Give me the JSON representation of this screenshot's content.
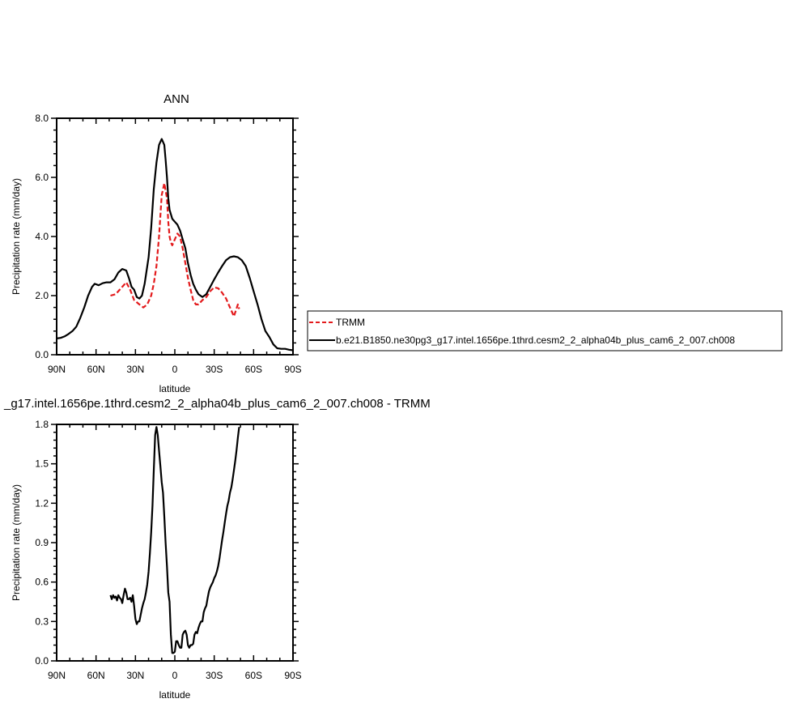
{
  "chart_data": [
    {
      "type": "line",
      "title": "ANN",
      "xlabel": "latitude",
      "ylabel": "Precipitation rate (mm/day)",
      "xticks": [
        "90N",
        "60N",
        "30N",
        "0",
        "30S",
        "60S",
        "90S"
      ],
      "xlim": [
        90,
        -90
      ],
      "ylim": [
        0,
        8
      ],
      "yticks": [
        "0.0",
        "2.0",
        "4.0",
        "6.0",
        "8.0"
      ],
      "legend_position": "right",
      "series": [
        {
          "name": "TRMM",
          "color": "#e31a1c",
          "style": "dashed",
          "x": [
            49,
            45,
            40,
            37,
            34,
            31,
            27,
            24,
            21,
            18,
            16,
            14,
            12,
            10,
            8,
            6,
            5,
            4,
            3,
            2,
            0,
            -2,
            -4,
            -6,
            -8,
            -10,
            -12,
            -14,
            -16,
            -18,
            -21,
            -24,
            -27,
            -30,
            -33,
            -36,
            -39,
            -42,
            -45,
            -48,
            -49
          ],
          "y": [
            2.0,
            2.05,
            2.3,
            2.45,
            2.2,
            1.85,
            1.7,
            1.6,
            1.7,
            2.0,
            2.4,
            3.0,
            4.0,
            5.4,
            5.8,
            5.3,
            4.5,
            4.0,
            3.8,
            3.7,
            3.9,
            4.1,
            4.0,
            3.6,
            3.1,
            2.6,
            2.2,
            1.85,
            1.7,
            1.7,
            1.85,
            1.95,
            2.15,
            2.28,
            2.25,
            2.1,
            1.9,
            1.6,
            1.3,
            1.7,
            1.55
          ]
        },
        {
          "name": "b.e21.B1850.ne30pg3_g17.intel.1656pe.1thrd.cesm2_2_alpha04b_plus_cam6_2_007.ch008",
          "color": "#000000",
          "style": "solid",
          "x": [
            90,
            87,
            84,
            81,
            78,
            75,
            72,
            69,
            66,
            63,
            61,
            58,
            55,
            52,
            49,
            46,
            43,
            40,
            37,
            35,
            33,
            31,
            29,
            27,
            25,
            23,
            20,
            18,
            16,
            14,
            12,
            10,
            8,
            7,
            6,
            5,
            4,
            2,
            0,
            -2,
            -4,
            -6,
            -8,
            -10,
            -12,
            -14,
            -16,
            -18,
            -21,
            -24,
            -27,
            -30,
            -33,
            -36,
            -39,
            -42,
            -45,
            -48,
            -51,
            -54,
            -57,
            -60,
            -63,
            -66,
            -69,
            -72,
            -75,
            -78,
            -81,
            -84,
            -87,
            -90
          ],
          "y": [
            0.55,
            0.57,
            0.62,
            0.7,
            0.8,
            0.95,
            1.25,
            1.6,
            2.0,
            2.3,
            2.4,
            2.35,
            2.42,
            2.45,
            2.45,
            2.55,
            2.78,
            2.9,
            2.85,
            2.6,
            2.3,
            2.2,
            1.95,
            1.9,
            2.0,
            2.4,
            3.3,
            4.3,
            5.6,
            6.5,
            7.1,
            7.3,
            7.1,
            6.6,
            6.0,
            5.3,
            4.9,
            4.6,
            4.5,
            4.4,
            4.2,
            3.9,
            3.6,
            3.1,
            2.7,
            2.4,
            2.2,
            2.05,
            1.95,
            2.05,
            2.3,
            2.55,
            2.78,
            3.0,
            3.2,
            3.3,
            3.33,
            3.3,
            3.2,
            3.0,
            2.6,
            2.15,
            1.7,
            1.2,
            0.8,
            0.6,
            0.35,
            0.22,
            0.2,
            0.2,
            0.17,
            0.15
          ]
        }
      ]
    },
    {
      "type": "line",
      "title": "_g17.intel.1656pe.1thrd.cesm2_2_alpha04b_plus_cam6_2_007.ch008 - TRMM",
      "xlabel": "latitude",
      "ylabel": "Precipitation rate (mm/day)",
      "xticks": [
        "90N",
        "60N",
        "30N",
        "0",
        "30S",
        "60S",
        "90S"
      ],
      "xlim": [
        90,
        -90
      ],
      "ylim": [
        0,
        1.8
      ],
      "yticks": [
        "0.0",
        "0.3",
        "0.6",
        "0.9",
        "1.2",
        "1.5",
        "1.8"
      ],
      "series": [
        {
          "name": "",
          "color": "#000000",
          "style": "solid",
          "x": [
            49,
            48,
            47,
            46,
            45,
            44,
            43,
            42,
            41,
            40,
            39,
            38,
            37,
            36,
            35,
            34,
            33,
            32,
            31,
            30,
            29,
            28,
            27,
            26,
            25,
            24,
            23,
            22,
            21,
            20,
            19,
            18,
            17,
            16,
            15,
            14,
            13,
            12,
            11,
            10,
            9,
            8,
            7,
            6,
            5,
            4,
            3,
            2,
            1,
            0,
            -1,
            -2,
            -3,
            -4,
            -5,
            -6,
            -7,
            -8,
            -9,
            -10,
            -11,
            -12,
            -13,
            -14,
            -15,
            -16,
            -17,
            -18,
            -19,
            -20,
            -21,
            -22,
            -23,
            -24,
            -25,
            -26,
            -27,
            -28,
            -29,
            -30,
            -31,
            -32,
            -33,
            -34,
            -35,
            -36,
            -37,
            -38,
            -39,
            -40,
            -41,
            -42,
            -43,
            -44,
            -45,
            -46,
            -47,
            -48,
            -49
          ],
          "y": [
            0.5,
            0.47,
            0.5,
            0.48,
            0.49,
            0.46,
            0.5,
            0.48,
            0.47,
            0.44,
            0.5,
            0.55,
            0.52,
            0.47,
            0.47,
            0.48,
            0.45,
            0.5,
            0.42,
            0.32,
            0.28,
            0.3,
            0.3,
            0.35,
            0.4,
            0.44,
            0.47,
            0.52,
            0.58,
            0.68,
            0.82,
            0.98,
            1.18,
            1.45,
            1.72,
            1.78,
            1.72,
            1.6,
            1.48,
            1.36,
            1.28,
            1.1,
            0.9,
            0.72,
            0.52,
            0.45,
            0.2,
            0.06,
            0.06,
            0.07,
            0.15,
            0.15,
            0.12,
            0.1,
            0.1,
            0.2,
            0.22,
            0.23,
            0.2,
            0.12,
            0.1,
            0.12,
            0.12,
            0.13,
            0.2,
            0.22,
            0.21,
            0.25,
            0.28,
            0.3,
            0.3,
            0.37,
            0.4,
            0.42,
            0.48,
            0.53,
            0.56,
            0.58,
            0.6,
            0.63,
            0.65,
            0.68,
            0.72,
            0.78,
            0.85,
            0.92,
            0.98,
            1.05,
            1.12,
            1.18,
            1.22,
            1.28,
            1.32,
            1.38,
            1.45,
            1.52,
            1.6,
            1.7,
            1.78
          ]
        }
      ]
    }
  ]
}
